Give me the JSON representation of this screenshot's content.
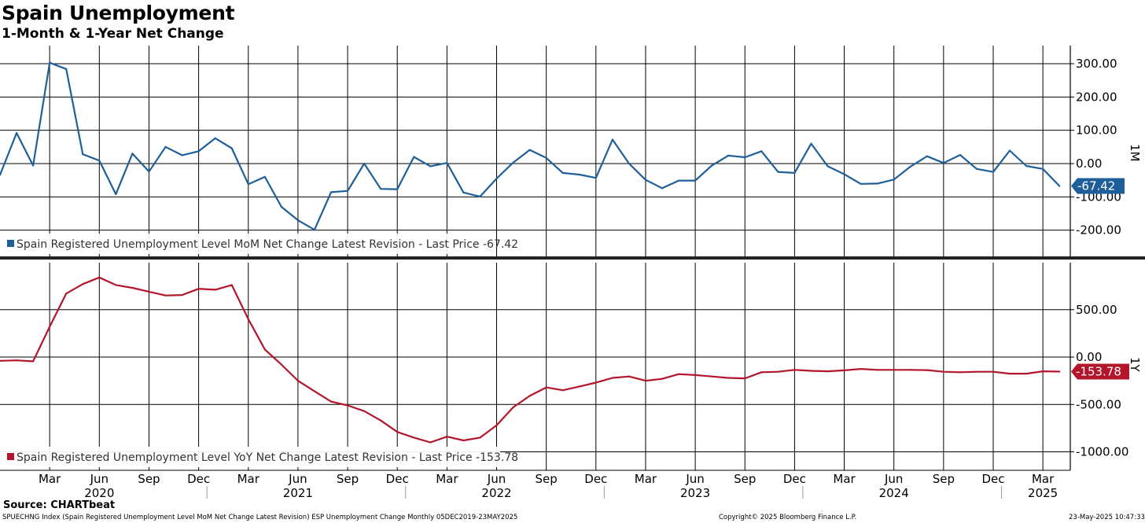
{
  "title": "Spain Unemployment",
  "subtitle": "1-Month & 1-Year Net Change",
  "source": "Source: CHARTbeat",
  "footer": {
    "description": "SPUECHNG Index (Spain Registered Unemployment Level MoM Net Change Latest Revision) ESP Unemployment Change  Monthly 05DEC2019-23MAY2025",
    "copyright": "Copyright© 2025 Bloomberg Finance L.P.",
    "timestamp": "23-May-2025 10:47:33"
  },
  "colors": {
    "mom": "#1f5f99",
    "yoy": "#b3162b",
    "grid": "#000000"
  },
  "chart_data": [
    {
      "type": "line",
      "panel_label": "1M",
      "x_start": "2019-12",
      "ylim": [
        -280,
        330
      ],
      "yticks": [
        300,
        200,
        100,
        0,
        -100,
        -200
      ],
      "ytick_labels": [
        "300.00",
        "200.00",
        "100.00",
        "0.00",
        "-100.00",
        "-200.00"
      ],
      "legend": "Spain Registered Unemployment Level MoM Net Change Latest Revision - Last Price -67.42",
      "last_value_label": "-67.42",
      "series": [
        {
          "color": "#1f5f99",
          "values": [
            -34,
            92,
            -6,
            303,
            284,
            28,
            9,
            -92,
            30,
            -24,
            50,
            25,
            37,
            76,
            46,
            -62,
            -40,
            -130,
            -170,
            -199,
            -86,
            -82,
            0,
            -76,
            -77,
            20,
            -8,
            2,
            -87,
            -99,
            -45,
            3,
            41,
            17,
            -28,
            -33,
            -43,
            72,
            0,
            -49,
            -74,
            -51,
            -51,
            -6,
            24,
            19,
            37,
            -25,
            -28,
            60,
            -8,
            -32,
            -61,
            -60,
            -48,
            -9,
            22,
            2,
            26,
            -16,
            -25,
            39,
            -7,
            -16,
            -67.42
          ]
        }
      ]
    },
    {
      "type": "line",
      "panel_label": "1Y",
      "x_start": "2019-12",
      "ylim": [
        -1200,
        1000
      ],
      "yticks": [
        500,
        0,
        -500,
        -1000
      ],
      "ytick_labels": [
        "500.00",
        "0.00",
        "-500.00",
        "-1000.00"
      ],
      "legend": "Spain Registered Unemployment Level YoY Net Change Latest Revision - Last Price -153.78",
      "last_value_label": "-153.78",
      "series": [
        {
          "color": "#b3162b",
          "values": [
            -40,
            -35,
            -45,
            320,
            670,
            770,
            840,
            760,
            730,
            690,
            650,
            655,
            720,
            710,
            760,
            400,
            80,
            -80,
            -250,
            -360,
            -470,
            -510,
            -570,
            -670,
            -790,
            -850,
            -900,
            -840,
            -880,
            -850,
            -720,
            -530,
            -410,
            -320,
            -350,
            -310,
            -270,
            -220,
            -205,
            -250,
            -230,
            -180,
            -190,
            -205,
            -220,
            -225,
            -160,
            -155,
            -135,
            -145,
            -150,
            -140,
            -125,
            -135,
            -135,
            -135,
            -138,
            -155,
            -160,
            -155,
            -155,
            -175,
            -175,
            -150,
            -153.78
          ]
        }
      ]
    }
  ],
  "x_axis": {
    "months": [
      {
        "label": "Mar",
        "idx": 3
      },
      {
        "label": "Jun",
        "idx": 6
      },
      {
        "label": "Sep",
        "idx": 9
      },
      {
        "label": "Dec",
        "idx": 12
      },
      {
        "label": "Mar",
        "idx": 15
      },
      {
        "label": "Jun",
        "idx": 18
      },
      {
        "label": "Sep",
        "idx": 21
      },
      {
        "label": "Dec",
        "idx": 24
      },
      {
        "label": "Mar",
        "idx": 27
      },
      {
        "label": "Jun",
        "idx": 30
      },
      {
        "label": "Sep",
        "idx": 33
      },
      {
        "label": "Dec",
        "idx": 36
      },
      {
        "label": "Mar",
        "idx": 39
      },
      {
        "label": "Jun",
        "idx": 42
      },
      {
        "label": "Sep",
        "idx": 45
      },
      {
        "label": "Dec",
        "idx": 48
      },
      {
        "label": "Mar",
        "idx": 51
      },
      {
        "label": "Jun",
        "idx": 54
      },
      {
        "label": "Sep",
        "idx": 57
      },
      {
        "label": "Dec",
        "idx": 60
      },
      {
        "label": "Mar",
        "idx": 63
      }
    ],
    "years": [
      {
        "label": "2020",
        "idx": 6
      },
      {
        "label": "2021",
        "idx": 18
      },
      {
        "label": "2022",
        "idx": 30
      },
      {
        "label": "2023",
        "idx": 42
      },
      {
        "label": "2024",
        "idx": 54
      },
      {
        "label": "2025",
        "idx": 63
      }
    ],
    "year_boundaries": [
      13,
      25,
      37,
      49,
      61
    ]
  }
}
